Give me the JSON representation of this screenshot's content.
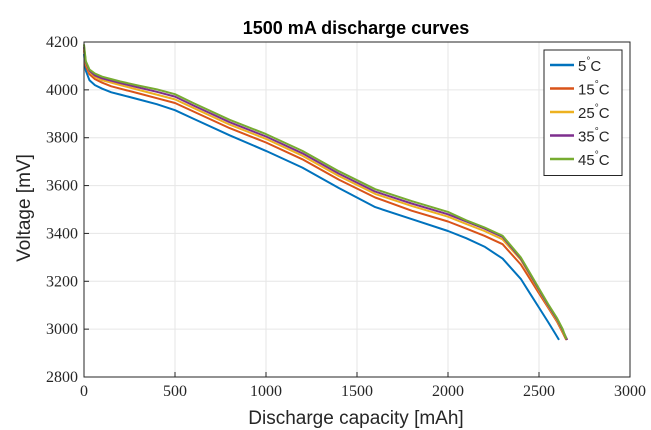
{
  "chart_data": {
    "type": "line",
    "title": "1500 mA discharge curves",
    "xlabel": "Discharge capacity [mAh]",
    "ylabel": "Voltage [mV]",
    "xlim": [
      0,
      3000
    ],
    "ylim": [
      2800,
      4200
    ],
    "xticks": [
      0,
      500,
      1000,
      1500,
      2000,
      2500,
      3000
    ],
    "yticks": [
      2800,
      3000,
      3200,
      3400,
      3600,
      3800,
      4000,
      4200
    ],
    "xtick_labels": [
      "0",
      "500",
      "1000",
      "1500",
      "2000",
      "2500",
      "3000"
    ],
    "ytick_labels": [
      "2800",
      "3000",
      "3200",
      "3400",
      "3600",
      "3800",
      "4000",
      "4200"
    ],
    "grid": true,
    "legend_position": "top-right",
    "series": [
      {
        "name": "5",
        "unit": "C",
        "degree": "°",
        "color": "#0072BD",
        "x": [
          0,
          10,
          30,
          60,
          100,
          150,
          200,
          300,
          400,
          500,
          600,
          800,
          1000,
          1200,
          1400,
          1600,
          1800,
          2000,
          2100,
          2200,
          2300,
          2400,
          2450,
          2500,
          2550,
          2590,
          2610
        ],
        "y": [
          4150,
          4080,
          4040,
          4020,
          4005,
          3990,
          3980,
          3960,
          3940,
          3915,
          3880,
          3810,
          3745,
          3675,
          3590,
          3510,
          3460,
          3410,
          3380,
          3345,
          3295,
          3210,
          3150,
          3090,
          3030,
          2980,
          2955
        ]
      },
      {
        "name": "15",
        "unit": "C",
        "degree": "°",
        "color": "#D95319",
        "x": [
          0,
          10,
          30,
          60,
          100,
          150,
          200,
          300,
          400,
          500,
          600,
          800,
          1000,
          1200,
          1400,
          1600,
          1800,
          2000,
          2100,
          2200,
          2300,
          2400,
          2450,
          2500,
          2550,
          2600,
          2630,
          2650
        ],
        "y": [
          4165,
          4100,
          4065,
          4045,
          4030,
          4015,
          4005,
          3985,
          3965,
          3945,
          3910,
          3840,
          3780,
          3710,
          3625,
          3550,
          3495,
          3450,
          3420,
          3390,
          3355,
          3270,
          3210,
          3150,
          3090,
          3030,
          2985,
          2955
        ]
      },
      {
        "name": "25",
        "unit": "C",
        "degree": "°",
        "color": "#EDB120",
        "x": [
          0,
          10,
          30,
          60,
          100,
          150,
          200,
          300,
          400,
          500,
          600,
          800,
          1000,
          1200,
          1400,
          1600,
          1800,
          2000,
          2100,
          2200,
          2300,
          2400,
          2450,
          2500,
          2550,
          2600,
          2630,
          2655
        ],
        "y": [
          4175,
          4110,
          4075,
          4055,
          4040,
          4030,
          4020,
          4000,
          3980,
          3960,
          3925,
          3855,
          3795,
          3725,
          3640,
          3565,
          3515,
          3470,
          3440,
          3410,
          3375,
          3290,
          3225,
          3160,
          3095,
          3035,
          2990,
          2955
        ]
      },
      {
        "name": "35",
        "unit": "C",
        "degree": "°",
        "color": "#7E2F8E",
        "x": [
          0,
          10,
          30,
          60,
          100,
          150,
          200,
          300,
          400,
          500,
          600,
          800,
          1000,
          1200,
          1400,
          1600,
          1800,
          2000,
          2100,
          2200,
          2300,
          2400,
          2450,
          2500,
          2550,
          2600,
          2630,
          2655
        ],
        "y": [
          4180,
          4115,
          4080,
          4060,
          4048,
          4038,
          4028,
          4010,
          3992,
          3972,
          3935,
          3865,
          3805,
          3735,
          3650,
          3575,
          3525,
          3480,
          3450,
          3420,
          3385,
          3295,
          3230,
          3165,
          3100,
          3040,
          2995,
          2955
        ]
      },
      {
        "name": "45",
        "unit": "C",
        "degree": "°",
        "color": "#77AC30",
        "x": [
          0,
          10,
          30,
          60,
          100,
          150,
          200,
          300,
          400,
          500,
          600,
          800,
          1000,
          1200,
          1400,
          1600,
          1800,
          2000,
          2100,
          2200,
          2300,
          2400,
          2450,
          2500,
          2550,
          2600,
          2630,
          2650
        ],
        "y": [
          4190,
          4120,
          4085,
          4068,
          4055,
          4045,
          4035,
          4018,
          4002,
          3982,
          3945,
          3875,
          3815,
          3745,
          3660,
          3585,
          3535,
          3490,
          3455,
          3425,
          3390,
          3300,
          3235,
          3170,
          3105,
          3045,
          3000,
          2958
        ]
      }
    ]
  }
}
